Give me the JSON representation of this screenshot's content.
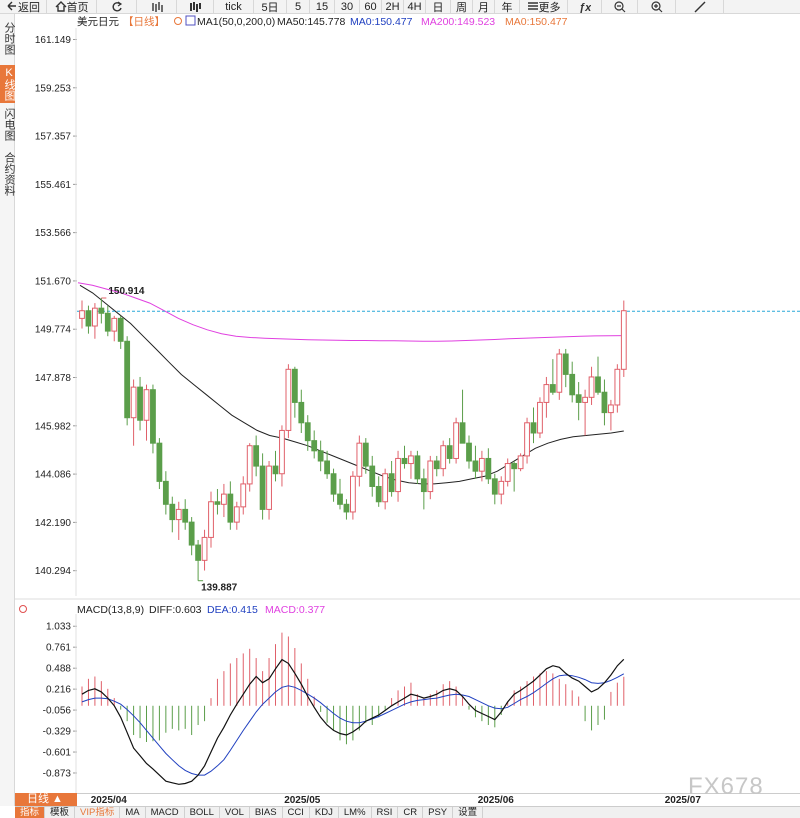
{
  "toolbar": {
    "items": [
      {
        "label": "返回",
        "icon": "back-arrow-icon"
      },
      {
        "label": "首页",
        "icon": "home-icon"
      },
      {
        "label": "",
        "icon": "refresh-icon"
      },
      {
        "label": "",
        "icon": "candlestick-chart-icon"
      },
      {
        "label": "",
        "icon": "kline-chart-icon"
      },
      {
        "label": "tick",
        "icon": ""
      },
      {
        "label": "5日",
        "icon": ""
      },
      {
        "label": "5",
        "icon": ""
      },
      {
        "label": "15",
        "icon": ""
      },
      {
        "label": "30",
        "icon": ""
      },
      {
        "label": "60",
        "icon": ""
      },
      {
        "label": "2H",
        "icon": ""
      },
      {
        "label": "4H",
        "icon": ""
      },
      {
        "label": "日",
        "icon": ""
      },
      {
        "label": "周",
        "icon": ""
      },
      {
        "label": "月",
        "icon": ""
      },
      {
        "label": "年",
        "icon": ""
      },
      {
        "label": "更多",
        "icon": "menu-icon"
      },
      {
        "label": "",
        "icon": "function-icon"
      },
      {
        "label": "",
        "icon": "zoom-out-icon"
      },
      {
        "label": "",
        "icon": "zoom-in-icon"
      },
      {
        "label": "",
        "icon": "draw-line-icon"
      }
    ]
  },
  "sidebar": {
    "tabs": [
      {
        "label": "分时图",
        "active": false
      },
      {
        "label": "K线图",
        "active": true
      },
      {
        "label": "闪电图",
        "active": false
      },
      {
        "label": "合约资料",
        "active": false
      }
    ]
  },
  "main_legend": {
    "symbol": "美元日元",
    "period": "【日线】",
    "ma_spec": "MA1(50,0,200,0)",
    "ma50": "MA50:145.778",
    "ma0_a": "MA0:150.477",
    "ma200": "MA200:149.523",
    "ma0_b": "MA0:150.477"
  },
  "macd_legend": {
    "spec": "MACD(13,8,9)",
    "diff": "DIFF:0.603",
    "dea": "DEA:0.415",
    "macd": "MACD:0.377"
  },
  "price_labels": {
    "high": "150.914",
    "low": "139.887"
  },
  "bottom": {
    "period_tag": "日线 ▲",
    "dates": [
      "2025/04",
      "2025/05",
      "2025/06",
      "2025/07"
    ],
    "indicator_tabs": [
      {
        "label": "指标",
        "style": "active"
      },
      {
        "label": "模板",
        "style": ""
      },
      {
        "label": "VIP指标",
        "style": "orange"
      },
      {
        "label": "MA",
        "style": ""
      },
      {
        "label": "MACD",
        "style": ""
      },
      {
        "label": "BOLL",
        "style": ""
      },
      {
        "label": "VOL",
        "style": ""
      },
      {
        "label": "BIAS",
        "style": ""
      },
      {
        "label": "CCI",
        "style": ""
      },
      {
        "label": "KDJ",
        "style": ""
      },
      {
        "label": "LM%",
        "style": ""
      },
      {
        "label": "RSI",
        "style": ""
      },
      {
        "label": "CR",
        "style": ""
      },
      {
        "label": "PSY",
        "style": ""
      },
      {
        "label": "设置",
        "style": ""
      }
    ],
    "watermark": "FX678"
  },
  "colors": {
    "up": "#e0606a",
    "down": "#5b9e4a",
    "ma50": "#222222",
    "ma200": "#e040e0",
    "dea": "#2040c0",
    "diff": "#111111",
    "accent": "#e8773a",
    "current_price_line": "#2aa8d8"
  },
  "chart_data": [
    {
      "type": "candlestick",
      "title": "美元日元【日线】",
      "y_ticks": [
        "161.149",
        "159.253",
        "157.357",
        "155.461",
        "153.566",
        "151.670",
        "149.774",
        "147.878",
        "145.982",
        "144.086",
        "142.190",
        "140.294"
      ],
      "ylim": [
        139.3,
        161.6
      ],
      "current_price": 150.477,
      "x_labels": [
        "2025/04",
        "2025/05",
        "2025/06",
        "2025/07"
      ],
      "x_label_index": [
        6,
        36,
        66,
        95
      ],
      "candles_ohlc": [
        [
          150.2,
          150.9,
          149.8,
          150.5
        ],
        [
          150.5,
          150.7,
          149.6,
          149.9
        ],
        [
          149.9,
          150.8,
          149.4,
          150.6
        ],
        [
          150.6,
          151.0,
          150.0,
          150.4
        ],
        [
          150.4,
          150.7,
          149.5,
          149.7
        ],
        [
          149.7,
          150.3,
          149.3,
          150.2
        ],
        [
          150.2,
          150.3,
          149.0,
          149.3
        ],
        [
          149.3,
          149.5,
          146.0,
          146.3
        ],
        [
          146.3,
          147.8,
          145.2,
          147.5
        ],
        [
          147.5,
          147.9,
          145.8,
          146.2
        ],
        [
          146.2,
          147.6,
          145.4,
          147.4
        ],
        [
          147.4,
          147.6,
          144.9,
          145.3
        ],
        [
          145.3,
          145.5,
          143.5,
          143.8
        ],
        [
          143.8,
          144.2,
          142.5,
          142.9
        ],
        [
          142.9,
          143.2,
          141.8,
          142.3
        ],
        [
          142.3,
          143.0,
          141.5,
          142.7
        ],
        [
          142.7,
          143.1,
          141.9,
          142.2
        ],
        [
          142.2,
          142.4,
          140.9,
          141.3
        ],
        [
          141.3,
          141.5,
          139.9,
          140.7
        ],
        [
          140.7,
          141.9,
          140.3,
          141.6
        ],
        [
          141.6,
          143.4,
          141.2,
          143.0
        ],
        [
          143.0,
          143.5,
          142.5,
          142.9
        ],
        [
          142.9,
          143.7,
          142.4,
          143.3
        ],
        [
          143.3,
          143.8,
          141.9,
          142.2
        ],
        [
          142.2,
          143.0,
          141.9,
          142.8
        ],
        [
          142.8,
          144.0,
          142.5,
          143.7
        ],
        [
          143.7,
          145.3,
          143.4,
          145.2
        ],
        [
          145.2,
          145.6,
          144.0,
          144.4
        ],
        [
          144.4,
          144.9,
          142.3,
          142.7
        ],
        [
          142.7,
          144.6,
          142.3,
          144.4
        ],
        [
          144.4,
          145.0,
          143.8,
          144.1
        ],
        [
          144.1,
          146.0,
          143.6,
          145.8
        ],
        [
          145.8,
          148.4,
          145.5,
          148.2
        ],
        [
          148.2,
          148.3,
          146.3,
          146.9
        ],
        [
          146.9,
          147.4,
          145.7,
          146.1
        ],
        [
          146.1,
          146.4,
          145.0,
          145.4
        ],
        [
          145.4,
          145.8,
          144.7,
          145.0
        ],
        [
          145.0,
          145.4,
          144.2,
          144.6
        ],
        [
          144.6,
          145.0,
          143.9,
          144.1
        ],
        [
          144.1,
          144.3,
          143.0,
          143.3
        ],
        [
          143.3,
          143.9,
          142.7,
          142.9
        ],
        [
          142.9,
          143.1,
          142.3,
          142.6
        ],
        [
          142.6,
          144.2,
          142.3,
          144.0
        ],
        [
          144.0,
          145.6,
          143.6,
          145.3
        ],
        [
          145.3,
          145.5,
          144.1,
          144.4
        ],
        [
          144.4,
          144.8,
          143.2,
          143.6
        ],
        [
          143.6,
          144.0,
          142.8,
          143.0
        ],
        [
          143.0,
          144.3,
          142.7,
          144.1
        ],
        [
          144.1,
          144.6,
          143.2,
          143.4
        ],
        [
          143.4,
          145.0,
          143.0,
          144.7
        ],
        [
          144.7,
          145.2,
          144.3,
          144.5
        ],
        [
          144.5,
          145.0,
          143.9,
          144.8
        ],
        [
          144.8,
          145.0,
          143.7,
          143.9
        ],
        [
          143.9,
          144.3,
          142.7,
          143.4
        ],
        [
          143.4,
          144.8,
          143.1,
          144.6
        ],
        [
          144.6,
          144.8,
          144.0,
          144.3
        ],
        [
          144.3,
          145.4,
          144.0,
          145.2
        ],
        [
          145.2,
          145.5,
          144.5,
          144.7
        ],
        [
          144.7,
          146.3,
          144.5,
          146.1
        ],
        [
          146.1,
          147.4,
          145.6,
          145.3
        ],
        [
          145.3,
          145.6,
          144.3,
          144.6
        ],
        [
          144.6,
          145.2,
          143.9,
          144.2
        ],
        [
          144.2,
          145.0,
          143.8,
          144.7
        ],
        [
          144.7,
          145.1,
          143.7,
          143.9
        ],
        [
          143.9,
          144.1,
          142.9,
          143.3
        ],
        [
          143.3,
          144.0,
          142.9,
          143.8
        ],
        [
          143.8,
          144.7,
          143.6,
          144.5
        ],
        [
          144.5,
          144.6,
          143.4,
          144.3
        ],
        [
          144.3,
          144.9,
          144.2,
          144.8
        ],
        [
          144.8,
          146.3,
          144.5,
          146.1
        ],
        [
          146.1,
          146.7,
          145.3,
          145.7
        ],
        [
          145.7,
          147.1,
          145.5,
          146.9
        ],
        [
          146.9,
          147.9,
          146.3,
          147.6
        ],
        [
          147.6,
          148.6,
          147.2,
          147.3
        ],
        [
          147.3,
          149.0,
          147.0,
          148.8
        ],
        [
          148.8,
          149.0,
          147.5,
          148.0
        ],
        [
          148.0,
          148.5,
          146.9,
          147.2
        ],
        [
          147.2,
          147.7,
          146.2,
          146.9
        ],
        [
          146.9,
          147.4,
          145.6,
          147.1
        ],
        [
          147.1,
          148.3,
          146.8,
          147.9
        ],
        [
          147.9,
          148.7,
          147.2,
          147.3
        ],
        [
          147.3,
          147.8,
          146.0,
          146.5
        ],
        [
          146.5,
          147.0,
          145.8,
          146.8
        ],
        [
          146.8,
          148.4,
          146.5,
          148.2
        ],
        [
          148.2,
          150.9,
          147.9,
          150.5
        ]
      ]
    },
    {
      "type": "line",
      "title": "MA50 / MA200",
      "series": [
        {
          "name": "MA50",
          "values": [
            151.5,
            151.2,
            150.8,
            150.4,
            150.0,
            149.5,
            149.0,
            148.5,
            148.0,
            147.6,
            147.2,
            146.8,
            146.4,
            146.1,
            145.8,
            145.6,
            145.5,
            145.35,
            145.2,
            145.0,
            144.8,
            144.6,
            144.4,
            144.2,
            144.0,
            143.85,
            143.75,
            143.7,
            143.7,
            143.75,
            143.8,
            143.9,
            144.0,
            144.2,
            144.5,
            144.8,
            145.1,
            145.3,
            145.45,
            145.55,
            145.6,
            145.65,
            145.7,
            145.778
          ]
        },
        {
          "name": "MA200",
          "values": [
            151.6,
            151.5,
            151.35,
            151.2,
            151.0,
            150.8,
            150.5,
            150.2,
            149.95,
            149.75,
            149.6,
            149.5,
            149.45,
            149.42,
            149.4,
            149.38,
            149.36,
            149.35,
            149.34,
            149.33,
            149.33,
            149.32,
            149.32,
            149.31,
            149.3,
            149.3,
            149.31,
            149.33,
            149.35,
            149.37,
            149.4,
            149.42,
            149.44,
            149.46,
            149.48,
            149.5,
            149.51,
            149.52,
            149.523
          ]
        }
      ]
    },
    {
      "type": "bar",
      "title": "MACD(13,8,9)",
      "y_ticks": [
        "1.033",
        "0.761",
        "0.488",
        "0.216",
        "-0.056",
        "-0.329",
        "-0.601",
        "-0.873"
      ],
      "ylim": [
        -1.12,
        1.14
      ],
      "histogram": [
        0.25,
        0.35,
        0.38,
        0.32,
        0.22,
        0.1,
        -0.05,
        -0.2,
        -0.38,
        -0.42,
        -0.47,
        -0.46,
        -0.45,
        -0.35,
        -0.3,
        -0.32,
        -0.3,
        -0.38,
        -0.25,
        -0.2,
        0.1,
        0.35,
        0.45,
        0.55,
        0.62,
        0.68,
        0.74,
        0.62,
        0.45,
        0.62,
        0.8,
        0.95,
        0.9,
        0.75,
        0.55,
        0.35,
        0.12,
        -0.08,
        -0.22,
        -0.32,
        -0.45,
        -0.5,
        -0.45,
        -0.32,
        -0.22,
        -0.25,
        -0.15,
        -0.05,
        0.1,
        0.2,
        0.25,
        0.3,
        0.15,
        0.1,
        0.15,
        0.2,
        0.28,
        0.32,
        0.25,
        0.12,
        -0.05,
        -0.15,
        -0.2,
        -0.25,
        -0.28,
        -0.12,
        0.05,
        0.2,
        0.25,
        0.32,
        0.38,
        0.42,
        0.45,
        0.42,
        0.35,
        0.28,
        0.2,
        0.12,
        -0.2,
        -0.32,
        -0.25,
        -0.18,
        0.18,
        0.3,
        0.377
      ],
      "diff": [
        0.15,
        0.2,
        0.22,
        0.18,
        0.1,
        0.0,
        -0.15,
        -0.35,
        -0.55,
        -0.65,
        -0.75,
        -0.82,
        -0.9,
        -0.98,
        -1.0,
        -1.02,
        -1.01,
        -0.98,
        -0.9,
        -0.78,
        -0.6,
        -0.42,
        -0.28,
        -0.12,
        0.02,
        0.15,
        0.28,
        0.38,
        0.3,
        0.35,
        0.48,
        0.6,
        0.55,
        0.42,
        0.28,
        0.12,
        -0.02,
        -0.15,
        -0.25,
        -0.32,
        -0.36,
        -0.38,
        -0.34,
        -0.28,
        -0.2,
        -0.16,
        -0.12,
        -0.06,
        0.0,
        0.05,
        0.1,
        0.15,
        0.13,
        0.1,
        0.12,
        0.15,
        0.2,
        0.22,
        0.2,
        0.12,
        0.02,
        -0.06,
        -0.1,
        -0.14,
        -0.18,
        -0.08,
        0.05,
        0.15,
        0.2,
        0.26,
        0.32,
        0.4,
        0.48,
        0.52,
        0.5,
        0.42,
        0.36,
        0.32,
        0.25,
        0.18,
        0.22,
        0.3,
        0.4,
        0.52,
        0.603
      ],
      "dea": [
        0.05,
        0.08,
        0.1,
        0.1,
        0.09,
        0.06,
        0.02,
        -0.05,
        -0.13,
        -0.22,
        -0.32,
        -0.42,
        -0.52,
        -0.62,
        -0.7,
        -0.78,
        -0.84,
        -0.88,
        -0.9,
        -0.9,
        -0.85,
        -0.78,
        -0.7,
        -0.58,
        -0.45,
        -0.32,
        -0.2,
        -0.08,
        0.02,
        0.1,
        0.18,
        0.24,
        0.26,
        0.24,
        0.2,
        0.15,
        0.1,
        0.04,
        -0.03,
        -0.1,
        -0.16,
        -0.2,
        -0.22,
        -0.22,
        -0.2,
        -0.17,
        -0.14,
        -0.1,
        -0.06,
        -0.02,
        0.02,
        0.05,
        0.07,
        0.08,
        0.09,
        0.1,
        0.12,
        0.14,
        0.15,
        0.14,
        0.12,
        0.08,
        0.04,
        0.0,
        -0.03,
        -0.04,
        -0.02,
        0.03,
        0.08,
        0.12,
        0.17,
        0.23,
        0.29,
        0.35,
        0.39,
        0.4,
        0.39,
        0.37,
        0.34,
        0.3,
        0.29,
        0.3,
        0.33,
        0.37,
        0.415
      ]
    }
  ]
}
